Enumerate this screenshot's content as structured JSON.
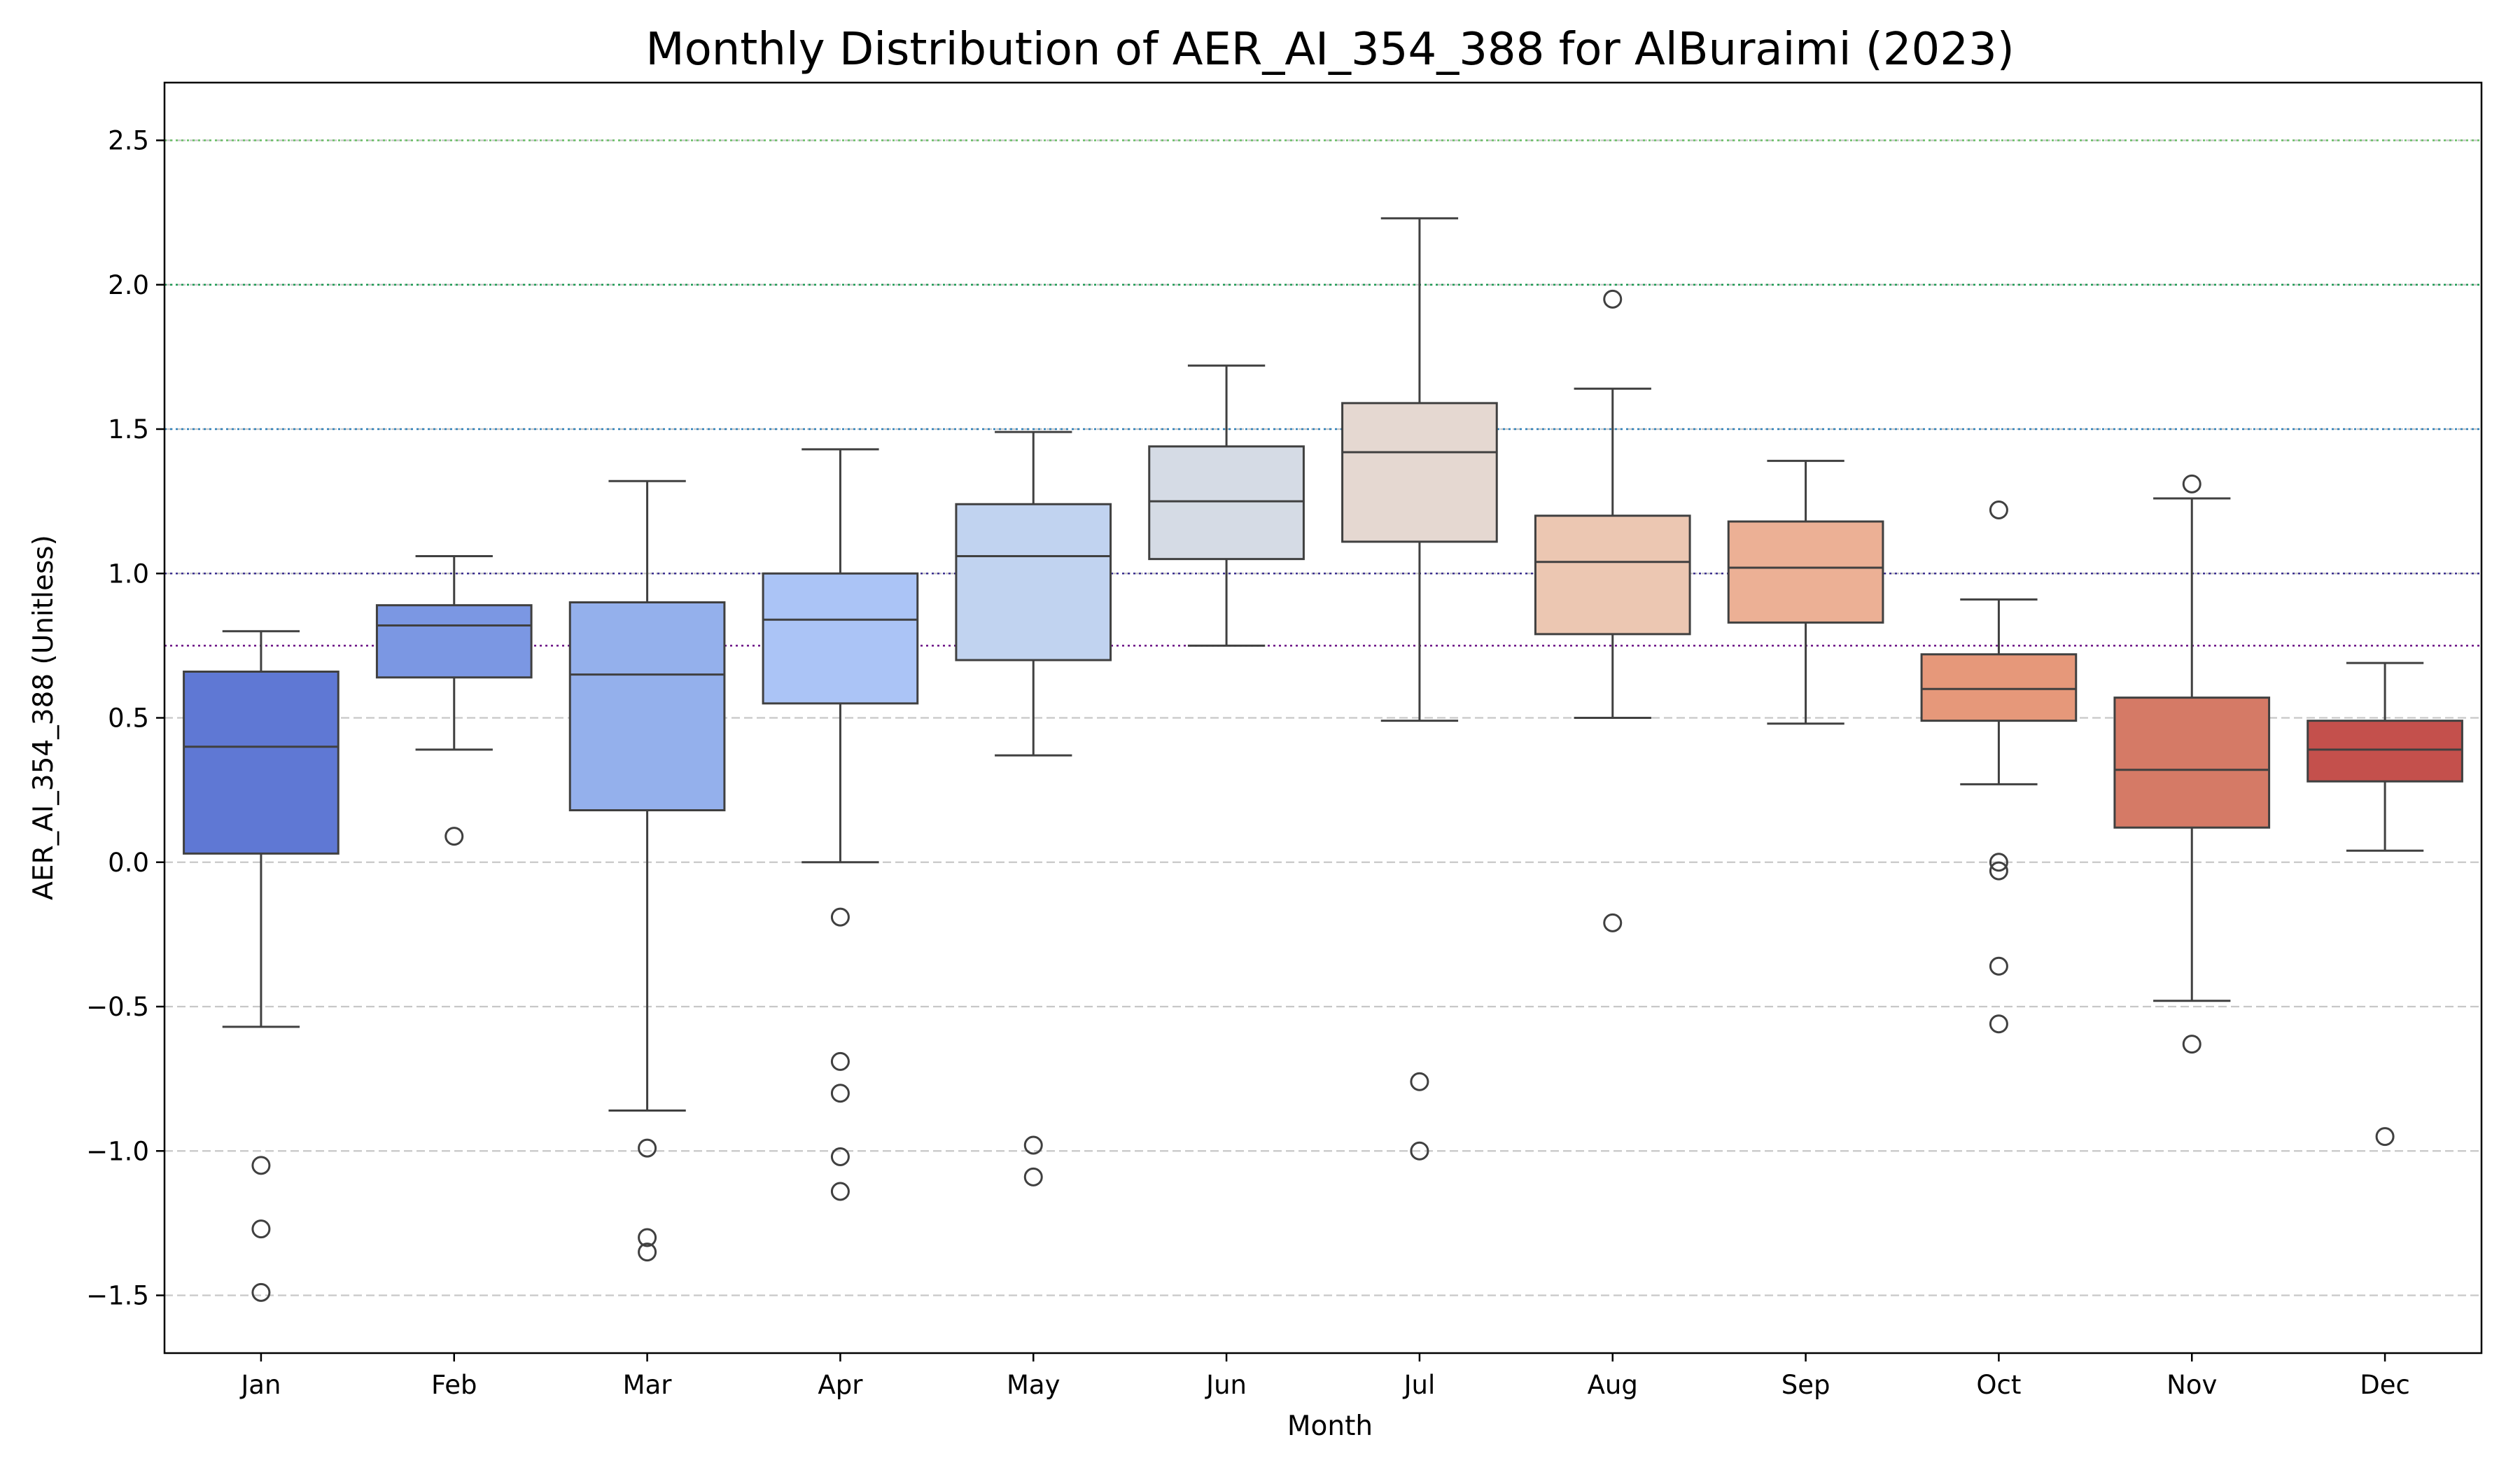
{
  "chart_data": {
    "type": "box",
    "title": "Monthly Distribution of AER_AI_354_388 for AlBuraimi (2023)",
    "xlabel": "Month",
    "ylabel": "AER_AI_354_388 (Unitless)",
    "ylim": [
      -1.7,
      2.7
    ],
    "yticks": [
      -1.5,
      -1.0,
      -0.5,
      0.0,
      0.5,
      1.0,
      1.5,
      2.0,
      2.5
    ],
    "ytick_labels": [
      "−1.5",
      "−1.0",
      "−0.5",
      "0.0",
      "0.5",
      "1.0",
      "1.5",
      "2.0",
      "2.5"
    ],
    "grid": "horizontal dashed",
    "reference_lines": [
      {
        "y": 0.75,
        "color": "#6a0d83",
        "style": "dotted"
      },
      {
        "y": 1.0,
        "color": "#3b2f8f",
        "style": "dotted"
      },
      {
        "y": 1.5,
        "color": "#2c7fb8",
        "style": "dotted"
      },
      {
        "y": 2.0,
        "color": "#1a9850",
        "style": "dotted"
      },
      {
        "y": 2.5,
        "color": "#66bd63",
        "style": "dotted"
      }
    ],
    "categories": [
      "Jan",
      "Feb",
      "Mar",
      "Apr",
      "May",
      "Jun",
      "Jul",
      "Aug",
      "Sep",
      "Oct",
      "Nov",
      "Dec"
    ],
    "boxes": [
      {
        "whislo": -0.57,
        "q1": 0.03,
        "med": 0.4,
        "q3": 0.66,
        "whishi": 0.8,
        "fliers": [
          -1.05,
          -1.27,
          -1.49
        ],
        "color": "#5f78d4"
      },
      {
        "whislo": 0.39,
        "q1": 0.64,
        "med": 0.82,
        "q3": 0.89,
        "whishi": 1.06,
        "fliers": [
          0.09
        ],
        "color": "#7b97e3"
      },
      {
        "whislo": -0.86,
        "q1": 0.18,
        "med": 0.65,
        "q3": 0.9,
        "whishi": 1.32,
        "fliers": [
          -0.99,
          -1.3,
          -1.35
        ],
        "color": "#94b0ec"
      },
      {
        "whislo": 0.0,
        "q1": 0.55,
        "med": 0.84,
        "q3": 1.0,
        "whishi": 1.43,
        "fliers": [
          -0.19,
          -0.69,
          -0.8,
          -1.02,
          -1.14
        ],
        "color": "#abc4f6"
      },
      {
        "whislo": 0.37,
        "q1": 0.7,
        "med": 1.06,
        "q3": 1.24,
        "whishi": 1.49,
        "fliers": [
          -0.98,
          -1.09
        ],
        "color": "#c1d3f0"
      },
      {
        "whislo": 0.75,
        "q1": 1.05,
        "med": 1.25,
        "q3": 1.44,
        "whishi": 1.72,
        "fliers": [],
        "color": "#d5dbe5"
      },
      {
        "whislo": 0.49,
        "q1": 1.11,
        "med": 1.42,
        "q3": 1.59,
        "whishi": 2.23,
        "fliers": [
          -0.76,
          -1.0
        ],
        "color": "#e5d8d1"
      },
      {
        "whislo": 0.5,
        "q1": 0.79,
        "med": 1.04,
        "q3": 1.2,
        "whishi": 1.64,
        "fliers": [
          1.95,
          -0.21
        ],
        "color": "#ecc7b2"
      },
      {
        "whislo": 0.48,
        "q1": 0.83,
        "med": 1.02,
        "q3": 1.18,
        "whishi": 1.39,
        "fliers": [],
        "color": "#ecb095"
      },
      {
        "whislo": 0.27,
        "q1": 0.49,
        "med": 0.6,
        "q3": 0.72,
        "whishi": 0.91,
        "fliers": [
          1.22,
          0.0,
          -0.03,
          -0.36,
          -0.56
        ],
        "color": "#e6987a"
      },
      {
        "whislo": -0.48,
        "q1": 0.12,
        "med": 0.32,
        "q3": 0.57,
        "whishi": 1.26,
        "fliers": [
          1.31,
          -0.63
        ],
        "color": "#d57a66"
      },
      {
        "whislo": 0.04,
        "q1": 0.28,
        "med": 0.39,
        "q3": 0.49,
        "whishi": 0.69,
        "fliers": [
          -0.95
        ],
        "color": "#c4504c"
      }
    ]
  }
}
